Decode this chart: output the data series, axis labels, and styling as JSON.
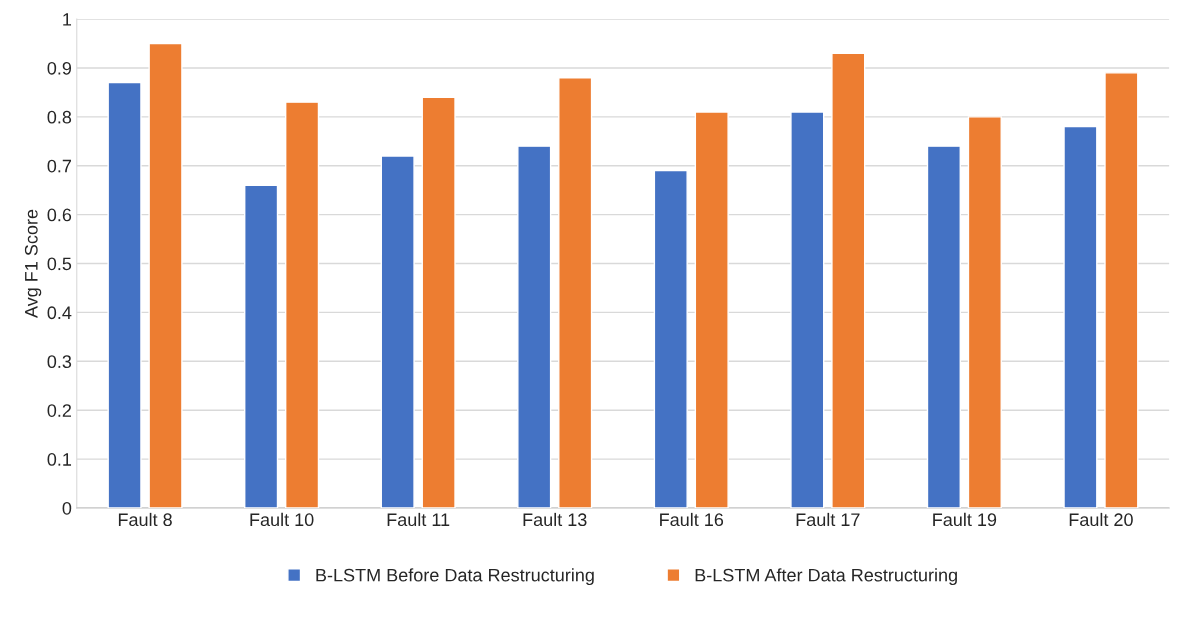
{
  "chart_data": {
    "type": "bar",
    "ylabel": "Avg F1 Score",
    "categories": [
      "Fault 8",
      "Fault 10",
      "Fault 11",
      "Fault 13",
      "Fault 16",
      "Fault 17",
      "Fault 19",
      "Fault 20"
    ],
    "series": [
      {
        "name": "B-LSTM Before Data Restructuring",
        "color": "#4472c4",
        "values": [
          0.87,
          0.66,
          0.72,
          0.74,
          0.69,
          0.81,
          0.74,
          0.78
        ]
      },
      {
        "name": "B-LSTM After Data Restructuring",
        "color": "#ed7d31",
        "values": [
          0.95,
          0.83,
          0.84,
          0.88,
          0.81,
          0.93,
          0.8,
          0.89
        ]
      }
    ],
    "ylim": [
      0,
      1
    ],
    "yticks": [
      0,
      0.1,
      0.2,
      0.3,
      0.4,
      0.5,
      0.6,
      0.7,
      0.8,
      0.9,
      1
    ],
    "grid": "y",
    "legend": "bottom"
  }
}
